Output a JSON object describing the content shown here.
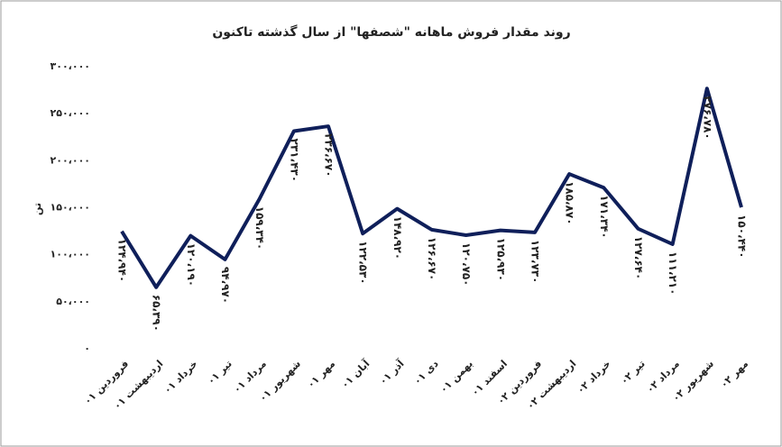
{
  "chart_data": {
    "type": "line",
    "title": "روند مقدار فروش ماهانه \"شصفها\" از سال گذشته تاکنون",
    "y_label": "تن",
    "categories": [
      "فروردین ۰۱",
      "اردیبهشت ۰۱",
      "خرداد ۰۱",
      "تیر ۰۱",
      "مرداد ۰۱",
      "شهریور ۰۱",
      "مهر ۰۱",
      "آبان ۰۱",
      "آذر ۰۱",
      "دی ۰۱",
      "بهمن ۰۱",
      "اسفند ۰۱",
      "فروردین ۰۲",
      "اردیبهشت ۰۲",
      "خرداد ۰۲",
      "تیر ۰۲",
      "مرداد ۰۲",
      "شهریور ۰۲",
      "مهر ۰۲"
    ],
    "values": [
      124940,
      65390,
      120190,
      94970,
      159340,
      231430,
      236670,
      122530,
      148920,
      126670,
      120750,
      125930,
      123730,
      185870,
      171340,
      127640,
      111210,
      276780,
      150440
    ],
    "value_labels": [
      "۱۲۴،۹۴۰",
      "۶۵،۳۹۰",
      "۱۲۰،۱۹۰",
      "۹۴،۹۷۰",
      "۱۵۹،۳۴۰",
      "۲۳۱،۴۳۰",
      "۲۳۶،۶۷۰",
      "۱۲۲،۵۳۰",
      "۱۴۸،۹۲۰",
      "۱۲۶،۶۷۰",
      "۱۲۰،۷۵۰",
      "۱۲۵،۹۳۰",
      "۱۲۳،۷۳۰",
      "۱۸۵،۸۷۰",
      "۱۷۱،۳۴۰",
      "۱۲۷،۶۴۰",
      "۱۱۱،۲۱۰",
      "۲۷۶،۷۸۰",
      "۱۵۰،۴۴۰"
    ],
    "color": "#0f1f5a",
    "ylim": [
      0,
      300000
    ],
    "yticks": [
      {
        "value": 0,
        "label": "۰"
      },
      {
        "value": 50000,
        "label": "۵۰،۰۰۰"
      },
      {
        "value": 100000,
        "label": "۱۰۰،۰۰۰"
      },
      {
        "value": 150000,
        "label": "۱۵۰،۰۰۰"
      },
      {
        "value": 200000,
        "label": "۲۰۰،۰۰۰"
      },
      {
        "value": 250000,
        "label": "۲۵۰،۰۰۰"
      },
      {
        "value": 300000,
        "label": "۳۰۰،۰۰۰"
      }
    ],
    "grid": false
  }
}
